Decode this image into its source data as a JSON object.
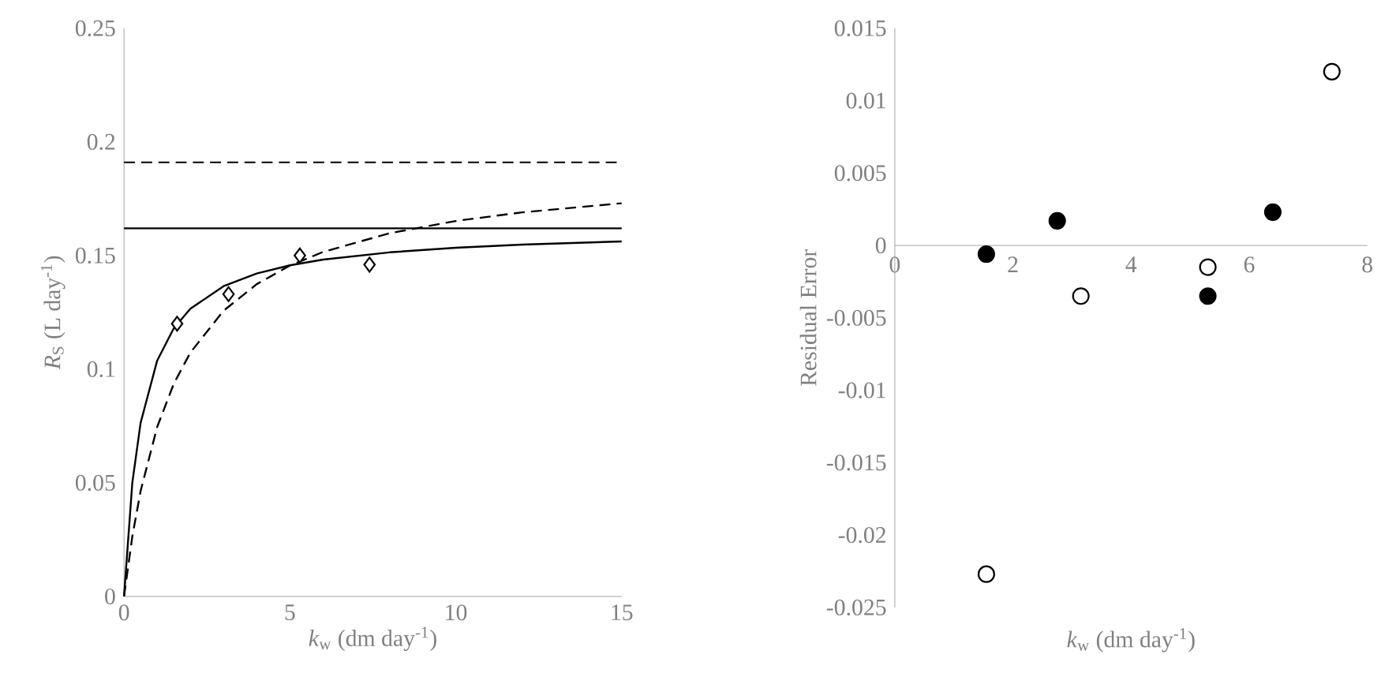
{
  "chart_data": [
    {
      "type": "scatter",
      "xlabel": "*k*$_{w}$ (dm day$^{-1}$)",
      "ylabel": "*R*$_{S}$ (L day$^{-1}$)",
      "xlim": [
        0,
        15
      ],
      "ylim": [
        0,
        0.25
      ],
      "xticks": [
        0,
        5,
        10,
        15
      ],
      "yticks": [
        0,
        0.05,
        0.1,
        0.15,
        0.2,
        0.25
      ],
      "series": [
        {
          "type": "line",
          "color": "#000000",
          "line_style": "solid",
          "marker": "none",
          "x": [
            0,
            0.25,
            0.5,
            1,
            1.5,
            2,
            3,
            4,
            5,
            6,
            8,
            10,
            12,
            15
          ],
          "values": [
            0,
            0.05,
            0.0764,
            0.1038,
            0.118,
            0.1266,
            0.1365,
            0.1421,
            0.1457,
            0.1482,
            0.1514,
            0.1534,
            0.1548,
            0.1562
          ]
        },
        {
          "type": "line",
          "color": "#000000",
          "line_style": "dashed",
          "marker": "none",
          "x": [
            0,
            0.25,
            0.5,
            1,
            1.5,
            2,
            3,
            4,
            5,
            6,
            8,
            10,
            12,
            15
          ],
          "values": [
            0,
            0.0264,
            0.0464,
            0.0746,
            0.0936,
            0.1073,
            0.1257,
            0.1374,
            0.1456,
            0.1516,
            0.1598,
            0.1652,
            0.169,
            0.173
          ]
        },
        {
          "color": "#ffffff",
          "marker": "diamond",
          "x": [
            1.6,
            3.15,
            5.3,
            7.4
          ],
          "values": [
            0.12,
            0.133,
            0.15,
            0.146
          ]
        }
      ],
      "ref_lines": [
        {
          "axis": "y",
          "value": 0.191,
          "color": "#000000",
          "line_style": "dashed"
        },
        {
          "axis": "y",
          "value": 0.162,
          "color": "#000000",
          "line_style": "solid"
        }
      ]
    },
    {
      "type": "scatter",
      "xlabel": "*k*$_{w}$ (dm day$^{-1}$)",
      "ylabel": "Residual Error",
      "xlim": [
        0,
        8
      ],
      "ylim": [
        -0.025,
        0.015
      ],
      "xticks": [
        0,
        2,
        4,
        6,
        8
      ],
      "yticks": [
        -0.025,
        -0.02,
        -0.015,
        -0.01,
        -0.005,
        0,
        0.005,
        0.01,
        0.015
      ],
      "series": [
        {
          "color": "#000000",
          "marker": "circle",
          "x": [
            1.55,
            2.75,
            5.3,
            6.4
          ],
          "values": [
            -0.0006,
            0.0017,
            -0.0035,
            0.0023
          ]
        },
        {
          "color": "#ffffff",
          "marker": "circle",
          "x": [
            1.55,
            3.15,
            5.3,
            7.4
          ],
          "values": [
            -0.0227,
            -0.0035,
            -0.0015,
            0.012
          ]
        }
      ]
    }
  ]
}
